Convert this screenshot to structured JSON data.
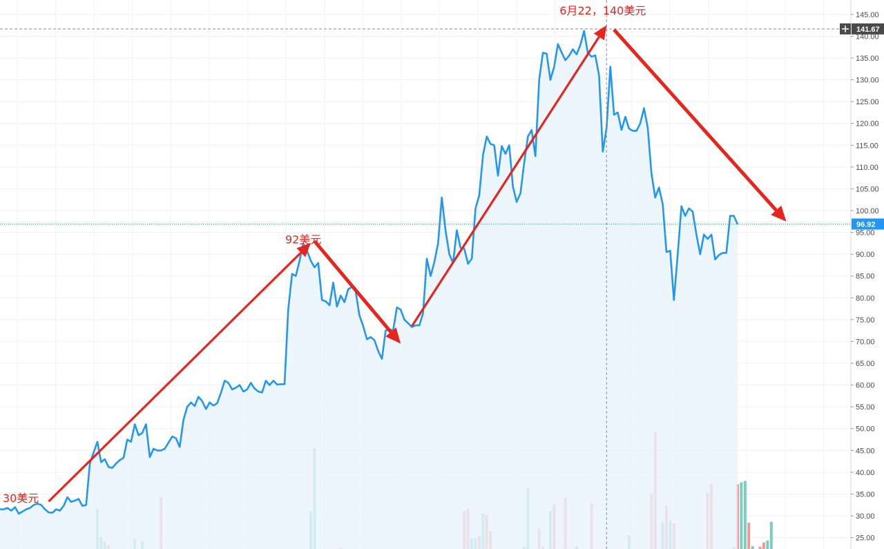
{
  "chart_data": {
    "type": "line",
    "title": "",
    "xlabel": "",
    "ylabel": "",
    "ylim": [
      22.4,
      148.3
    ],
    "y_ticks": [
      "145.00",
      "140.00",
      "135.00",
      "130.00",
      "125.00",
      "120.00",
      "115.00",
      "110.00",
      "105.00",
      "100.00",
      "95.00",
      "90.00",
      "85.00",
      "80.00",
      "75.00",
      "70.00",
      "65.00",
      "60.00",
      "55.00",
      "50.00",
      "45.00",
      "40.00",
      "35.00",
      "30.00",
      "25.00"
    ],
    "grid": true,
    "colors": {
      "line": "#2196f3",
      "area": "#e8f3fd",
      "arrow": "#e8241c",
      "volume_up": "#7ecbc1",
      "volume_down": "#ef9a9a",
      "crosshair_tag": "#4a4a4a",
      "last_price_tag": "#2196f3"
    },
    "series": [
      {
        "values": [
          31.5,
          31.5,
          31.8,
          31.2,
          32,
          30.5,
          31,
          31.5,
          31.8,
          32.5,
          32.8,
          32.5,
          31.5,
          30.8,
          30.7,
          31.5,
          31.2,
          32.3,
          34.3,
          33.2,
          33.5,
          33.9,
          32.3,
          32.5,
          42,
          44.5,
          47,
          42.3,
          43,
          41.2,
          41,
          42,
          42.8,
          43.3,
          47.5,
          47,
          51,
          48.5,
          49,
          51,
          43.5,
          45.4,
          45,
          45,
          45.4,
          46.8,
          48.2,
          47.8,
          45.8,
          52,
          55,
          56,
          55.2,
          57.3,
          56.3,
          54.5,
          56,
          55.3,
          55.8,
          58.2,
          61,
          60.5,
          59,
          59.4,
          60,
          58.5,
          59,
          60.5,
          59.2,
          58.5,
          58.3,
          61,
          60,
          61,
          60.1,
          60.2,
          60.2,
          77.5,
          85.5,
          85,
          88.5,
          92.5,
          90.8,
          88.5,
          87,
          88,
          79.5,
          79.2,
          78.3,
          83.5,
          78,
          80.5,
          79,
          82,
          82.5,
          81.5,
          76,
          73.5,
          70.5,
          71,
          70.3,
          67.8,
          66,
          72.5,
          72.8,
          72.5,
          77.8,
          77.3,
          75,
          74.2,
          73.3,
          73.7,
          73.7,
          76.5,
          89,
          85,
          88.2,
          92.5,
          103,
          95.5,
          90,
          88,
          95.5,
          91.5,
          91.3,
          87.8,
          89,
          100.5,
          103.5,
          112.8,
          117,
          115.3,
          115,
          108,
          114.8,
          113,
          115,
          105.5,
          102,
          104,
          111,
          117,
          118.5,
          112.5,
          130,
          136.2,
          136,
          130,
          133,
          138.2,
          136.3,
          134.5,
          135.5,
          137,
          135.8,
          138,
          141.2,
          136.2,
          135.3,
          135.6,
          131,
          113.5,
          119,
          133,
          122,
          122.5,
          118.5,
          121.5,
          118.8,
          118.3,
          118.3,
          120,
          123.5,
          119,
          108.5,
          103,
          105.3,
          101.5,
          90.5,
          90.8,
          79.5,
          90,
          101,
          98.8,
          100.5,
          99.8,
          94.5,
          90,
          94.5,
          93.5,
          94.5,
          88.8,
          89.8,
          90.3,
          90.3,
          98.8,
          98.8,
          96.9
        ]
      }
    ],
    "volume": [
      {
        "i": 26,
        "v": 8.5,
        "dir": "up"
      },
      {
        "i": 27,
        "v": 2.5,
        "dir": "up"
      },
      {
        "i": 28,
        "v": 1.5,
        "dir": "up"
      },
      {
        "i": 29,
        "v": 0.8,
        "dir": "down"
      },
      {
        "i": 36,
        "v": 2.1,
        "dir": "up"
      },
      {
        "i": 38,
        "v": 1.6,
        "dir": "up"
      },
      {
        "i": 43,
        "v": 11,
        "dir": "down"
      },
      {
        "i": 83,
        "v": 8,
        "dir": "up"
      },
      {
        "i": 84,
        "v": 21.5,
        "dir": "up"
      },
      {
        "i": 91,
        "v": 0.3,
        "dir": "down"
      },
      {
        "i": 124,
        "v": 8.2,
        "dir": "down"
      },
      {
        "i": 125,
        "v": 8.5,
        "dir": "down"
      },
      {
        "i": 126,
        "v": 2.2,
        "dir": "up"
      },
      {
        "i": 127,
        "v": 2.3,
        "dir": "up"
      },
      {
        "i": 128,
        "v": 2.7,
        "dir": "down"
      },
      {
        "i": 129,
        "v": 7.5,
        "dir": "up"
      },
      {
        "i": 130,
        "v": 7.2,
        "dir": "down"
      },
      {
        "i": 131,
        "v": 3.8,
        "dir": "down"
      },
      {
        "i": 140,
        "v": 0.5,
        "dir": "up"
      },
      {
        "i": 141,
        "v": 13.1,
        "dir": "up"
      },
      {
        "i": 144,
        "v": 4.3,
        "dir": "down"
      },
      {
        "i": 145,
        "v": 0.5,
        "dir": "down"
      },
      {
        "i": 147,
        "v": 8.1,
        "dir": "up"
      },
      {
        "i": 148,
        "v": 9.4,
        "dir": "down"
      },
      {
        "i": 151,
        "v": 10.9,
        "dir": "down"
      },
      {
        "i": 154,
        "v": 0.6,
        "dir": "up"
      },
      {
        "i": 158,
        "v": 9.7,
        "dir": "down"
      },
      {
        "i": 168,
        "v": 3,
        "dir": "up"
      },
      {
        "i": 174,
        "v": 11.8,
        "dir": "down"
      },
      {
        "i": 175,
        "v": 24.8,
        "dir": "down"
      },
      {
        "i": 177,
        "v": 5.8,
        "dir": "up"
      },
      {
        "i": 178,
        "v": 9.2,
        "dir": "down"
      },
      {
        "i": 179,
        "v": 6,
        "dir": "up"
      },
      {
        "i": 180,
        "v": 5.4,
        "dir": "down"
      },
      {
        "i": 189,
        "v": 12,
        "dir": "down"
      },
      {
        "i": 190,
        "v": 14,
        "dir": "down"
      },
      {
        "i": 196,
        "v": 0.5,
        "dir": "up"
      },
      {
        "i": 197,
        "v": 13.8,
        "dir": "down"
      },
      {
        "i": 198,
        "v": 14.2,
        "dir": "up"
      },
      {
        "i": 199,
        "v": 14.5,
        "dir": "up"
      },
      {
        "i": 200,
        "v": 5.6,
        "dir": "down"
      },
      {
        "i": 201,
        "v": 0.6,
        "dir": "up"
      },
      {
        "i": 203,
        "v": 0.5,
        "dir": "down"
      },
      {
        "i": 204,
        "v": 1.4,
        "dir": "down"
      },
      {
        "i": 205,
        "v": 1.8,
        "dir": "up"
      },
      {
        "i": 206,
        "v": 5.8,
        "dir": "up"
      }
    ],
    "annotations": [
      {
        "text": "30美元",
        "price": 33.2,
        "index": 0
      },
      {
        "text": "92美元",
        "price": 92.5,
        "index": 81
      },
      {
        "text": "6月22，140美元",
        "price": 145,
        "index": 161
      }
    ],
    "arrows": [
      {
        "from_index": 13,
        "from_price": 33.3,
        "to_index": 83,
        "to_price": 92.6,
        "weight": "thin"
      },
      {
        "from_index": 84,
        "from_price": 93,
        "to_index": 107,
        "to_price": 69.5,
        "weight": "thick"
      },
      {
        "from_index": 110,
        "from_price": 73.5,
        "to_index": 162,
        "to_price": 142.5,
        "weight": "thin"
      },
      {
        "from_index": 164,
        "from_price": 141.5,
        "to_index": 210,
        "to_price": 97.5,
        "weight": "thick"
      }
    ],
    "crosshair": {
      "price_label": "141.67",
      "price": 141.67,
      "index": 162
    },
    "last_price": {
      "label": "96.92",
      "price": 96.92
    }
  }
}
